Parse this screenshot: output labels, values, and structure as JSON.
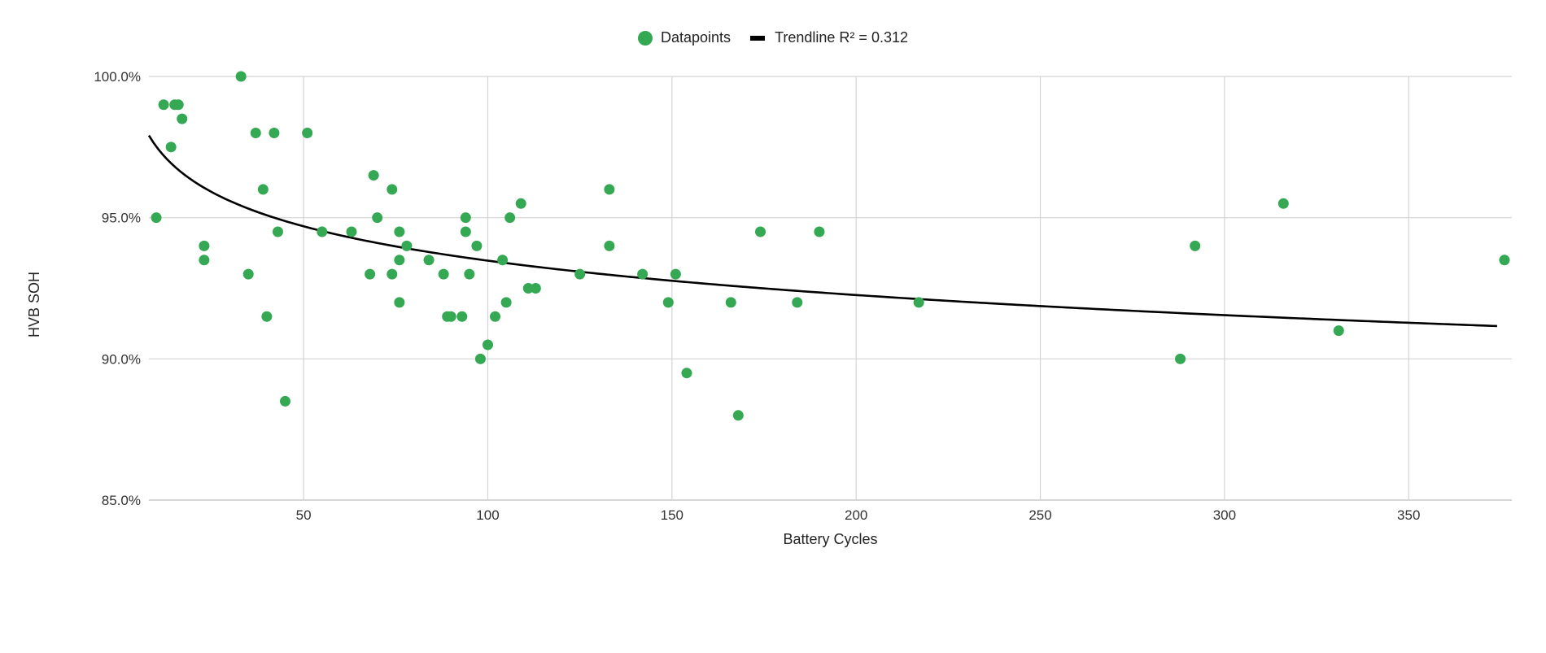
{
  "chart_data": {
    "type": "scatter",
    "xlabel": "Battery Cycles",
    "ylabel": "HVB SOH",
    "xlim": [
      8,
      378
    ],
    "ylim": [
      85,
      100
    ],
    "x_ticks": [
      50,
      100,
      150,
      200,
      250,
      300,
      350
    ],
    "y_ticks": [
      85,
      90,
      95,
      100
    ],
    "y_tick_labels": [
      "85.0%",
      "90.0%",
      "95.0%",
      "100.0%"
    ],
    "grid": true,
    "legend_position": "top-center",
    "series": [
      {
        "name": "Datapoints",
        "color": "#34a853",
        "points": [
          [
            10,
            95.0
          ],
          [
            12,
            99.0
          ],
          [
            14,
            97.5
          ],
          [
            15,
            99.0
          ],
          [
            16,
            99.0
          ],
          [
            17,
            98.5
          ],
          [
            23,
            94.0
          ],
          [
            23,
            93.5
          ],
          [
            33,
            100.0
          ],
          [
            35,
            93.0
          ],
          [
            37,
            98.0
          ],
          [
            39,
            96.0
          ],
          [
            40,
            91.5
          ],
          [
            42,
            98.0
          ],
          [
            43,
            94.5
          ],
          [
            45,
            88.5
          ],
          [
            51,
            98.0
          ],
          [
            55,
            94.5
          ],
          [
            63,
            94.5
          ],
          [
            68,
            93.0
          ],
          [
            69,
            96.5
          ],
          [
            70,
            95.0
          ],
          [
            74,
            96.0
          ],
          [
            74,
            93.0
          ],
          [
            76,
            94.5
          ],
          [
            76,
            93.5
          ],
          [
            76,
            92.0
          ],
          [
            78,
            94.0
          ],
          [
            84,
            93.5
          ],
          [
            88,
            93.0
          ],
          [
            89,
            91.5
          ],
          [
            90,
            91.5
          ],
          [
            93,
            91.5
          ],
          [
            94,
            95.0
          ],
          [
            94,
            94.5
          ],
          [
            95,
            93.0
          ],
          [
            97,
            94.0
          ],
          [
            98,
            90.0
          ],
          [
            100,
            90.5
          ],
          [
            102,
            91.5
          ],
          [
            104,
            93.5
          ],
          [
            105,
            92.0
          ],
          [
            106,
            95.0
          ],
          [
            109,
            95.5
          ],
          [
            111,
            92.5
          ],
          [
            113,
            92.5
          ],
          [
            125,
            93.0
          ],
          [
            133,
            96.0
          ],
          [
            133,
            94.0
          ],
          [
            142,
            93.0
          ],
          [
            149,
            92.0
          ],
          [
            151,
            93.0
          ],
          [
            154,
            89.5
          ],
          [
            166,
            92.0
          ],
          [
            168,
            88.0
          ],
          [
            174,
            94.5
          ],
          [
            184,
            92.0
          ],
          [
            190,
            94.5
          ],
          [
            217,
            92.0
          ],
          [
            288,
            90.0
          ],
          [
            292,
            94.0
          ],
          [
            316,
            95.5
          ],
          [
            331,
            91.0
          ],
          [
            376,
            93.5
          ]
        ]
      },
      {
        "name": "Trendline R² = 0.312",
        "color": "#000000",
        "type": "log-trendline",
        "a": 101.56,
        "b": -1.755,
        "x_start": 8,
        "x_end": 374
      }
    ]
  }
}
